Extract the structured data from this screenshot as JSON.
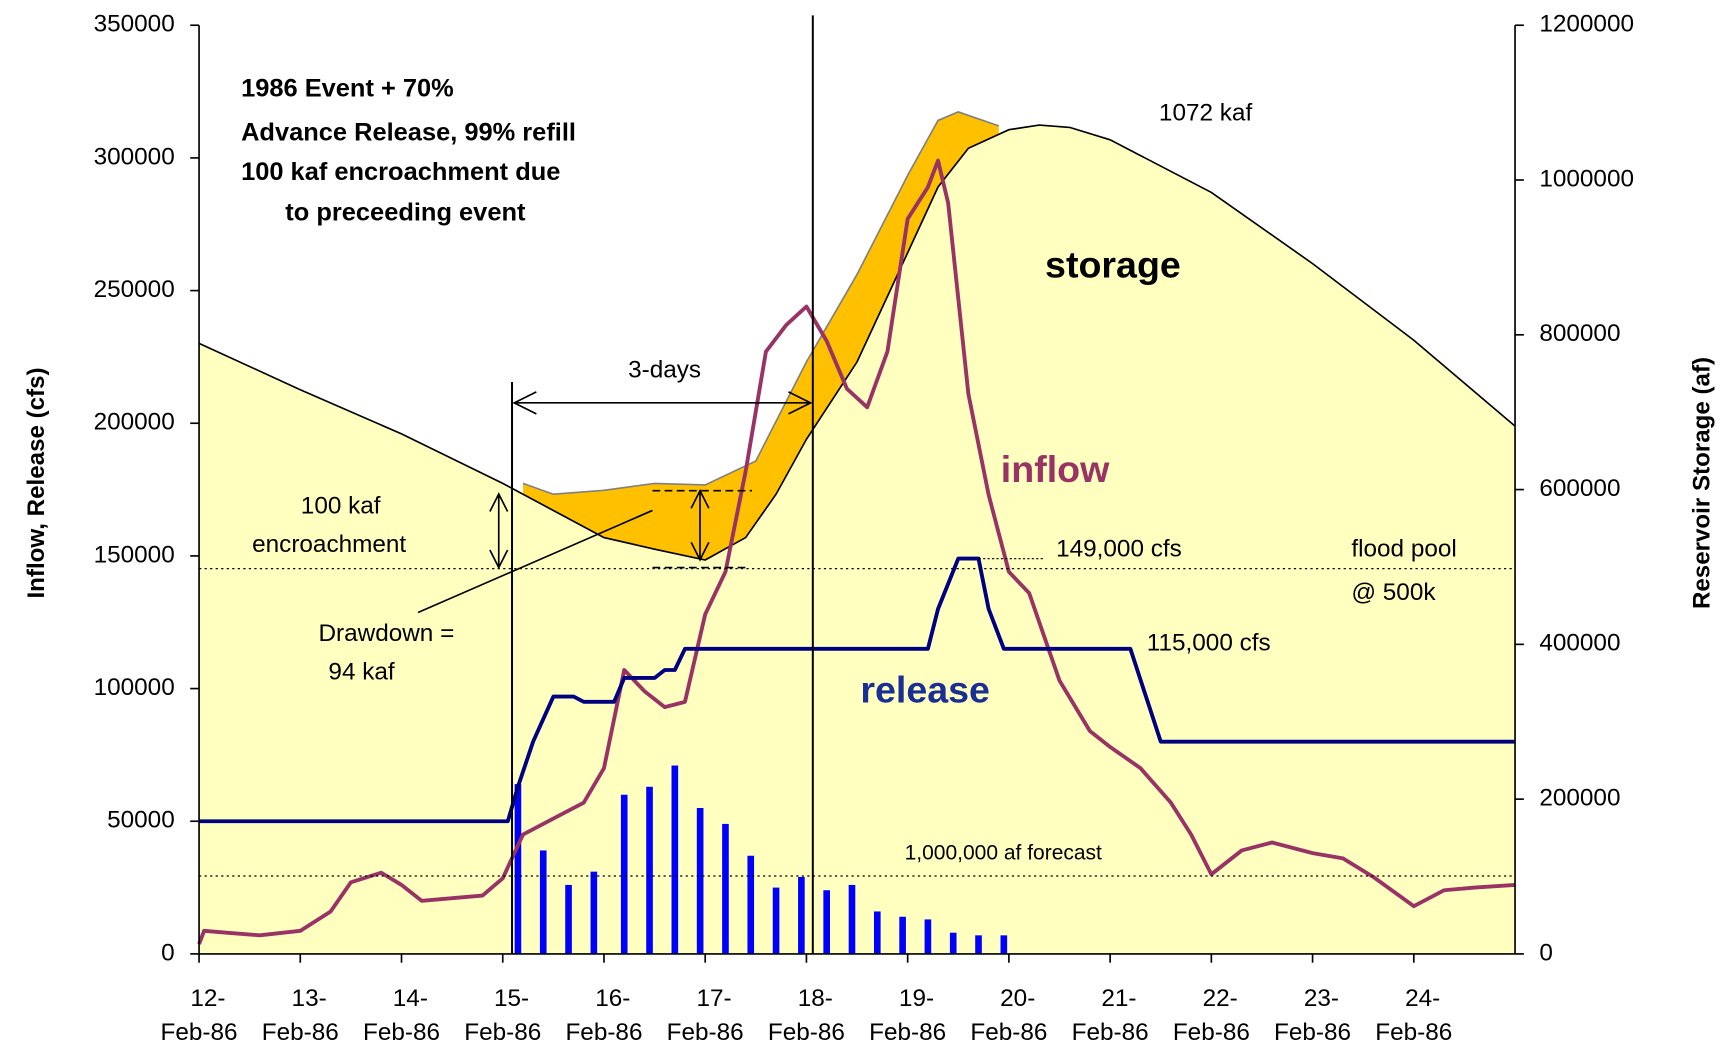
{
  "chart_data": {
    "type": "line",
    "ylabel": "Inflow, Release (cfs)",
    "y2label": "Reservoir Storage (af)",
    "xlim": [
      12,
      25
    ],
    "xticks": [
      {
        "value": 12,
        "label": "12-Feb-86"
      },
      {
        "value": 13,
        "label": "13-Feb-86"
      },
      {
        "value": 14,
        "label": "14-Feb-86"
      },
      {
        "value": 15,
        "label": "15-Feb-86"
      },
      {
        "value": 16,
        "label": "16-Feb-86"
      },
      {
        "value": 17,
        "label": "17-Feb-86"
      },
      {
        "value": 18,
        "label": "18-Feb-86"
      },
      {
        "value": 19,
        "label": "19-Feb-86"
      },
      {
        "value": 20,
        "label": "20-Feb-86"
      },
      {
        "value": 21,
        "label": "21-Feb-86"
      },
      {
        "value": 22,
        "label": "22-Feb-86"
      },
      {
        "value": 23,
        "label": "23-Feb-86"
      },
      {
        "value": 24,
        "label": "24-Feb-86"
      }
    ],
    "ylim": [
      0,
      350000
    ],
    "yticks": [
      0,
      50000,
      100000,
      150000,
      200000,
      250000,
      300000,
      350000
    ],
    "y2lim": [
      0,
      1200000
    ],
    "y2ticks": [
      0,
      200000,
      400000,
      600000,
      800000,
      1000000,
      1200000
    ],
    "series": [
      {
        "type": "area",
        "axis": "y2",
        "color": "#ffc000",
        "line_color": "#808080",
        "x": [
          15.2,
          15.5,
          16.0,
          16.5,
          17.0,
          17.5,
          18.0,
          18.5,
          19.0,
          19.3,
          19.5,
          19.9
        ],
        "values": [
          608000,
          594000,
          599000,
          608000,
          606000,
          637000,
          765000,
          878000,
          1006000,
          1077000,
          1088000,
          1070000
        ]
      },
      {
        "type": "area",
        "axis": "y2",
        "color": "#ffffc0",
        "line_color": "#000000",
        "x": [
          12.0,
          13.0,
          14.0,
          15.0,
          15.5,
          16.0,
          16.5,
          17.0,
          17.4,
          17.7,
          18.0,
          18.5,
          19.0,
          19.3,
          19.6,
          20.0,
          20.3,
          20.6,
          21.0,
          22.0,
          23.0,
          24.0,
          25.0
        ],
        "values": [
          789000,
          729000,
          672000,
          608000,
          573000,
          538000,
          523000,
          509000,
          538000,
          594000,
          665000,
          765000,
          906000,
          991000,
          1041000,
          1065000,
          1071000,
          1068000,
          1052000,
          984000,
          892000,
          793000,
          682000
        ]
      },
      {
        "type": "line",
        "color": "#993366",
        "x": [
          12.0,
          12.05,
          12.3,
          12.6,
          13.0,
          13.3,
          13.5,
          13.8,
          14.0,
          14.2,
          14.5,
          14.8,
          15.0,
          15.2,
          15.5,
          15.8,
          16.0,
          16.2,
          16.4,
          16.6,
          16.8,
          17.0,
          17.2,
          17.4,
          17.6,
          17.8,
          18.0,
          18.2,
          18.4,
          18.6,
          18.8,
          19.0,
          19.2,
          19.3,
          19.4,
          19.6,
          19.8,
          20.0,
          20.2,
          20.5,
          20.8,
          21.0,
          21.3,
          21.6,
          21.8,
          22.0,
          22.3,
          22.6,
          23.0,
          23.3,
          23.6,
          24.0,
          24.3,
          24.6,
          25.0
        ],
        "values": [
          3700,
          8700,
          7900,
          7000,
          8700,
          16000,
          27000,
          30600,
          26000,
          20000,
          21000,
          22000,
          28500,
          45000,
          51000,
          57000,
          70000,
          107000,
          99000,
          93000,
          95000,
          128000,
          144000,
          182000,
          227000,
          237000,
          244000,
          231000,
          213000,
          206000,
          227000,
          277000,
          289000,
          299000,
          283000,
          211000,
          173000,
          144000,
          136000,
          103000,
          84000,
          78000,
          70000,
          57000,
          45000,
          30000,
          39000,
          42000,
          38000,
          36000,
          29000,
          18000,
          24000,
          25000,
          26000
        ]
      },
      {
        "type": "line",
        "color": "#000080",
        "x": [
          12.0,
          15.05,
          15.15,
          15.3,
          15.5,
          15.7,
          15.8,
          16.1,
          16.2,
          16.5,
          16.6,
          16.7,
          16.8,
          19.2,
          19.3,
          19.5,
          19.7,
          19.8,
          19.95,
          21.2,
          21.5,
          25.0
        ],
        "values": [
          50000,
          50000,
          63000,
          80000,
          97000,
          97000,
          95000,
          95000,
          104000,
          104000,
          107000,
          107000,
          115000,
          115000,
          130000,
          149000,
          149000,
          130000,
          115000,
          115000,
          80000,
          80000
        ]
      },
      {
        "type": "bar",
        "color": "#0000ff",
        "x": [
          15.15,
          15.4,
          15.65,
          15.9,
          16.2,
          16.45,
          16.7,
          16.95,
          17.2,
          17.45,
          17.7,
          17.95,
          18.2,
          18.45,
          18.7,
          18.95,
          19.2,
          19.45,
          19.7,
          19.95
        ],
        "values": [
          64000,
          39000,
          26000,
          31000,
          60000,
          63000,
          71000,
          55000,
          49000,
          37000,
          25000,
          29000,
          24000,
          26000,
          16000,
          14000,
          13000,
          8000,
          7000,
          7000
        ]
      }
    ],
    "annotations": [
      "1986 Event + 70%",
      "Advance Release, 99% refill",
      "100 kaf encroachment due",
      "to preceeding event",
      "1072  kaf",
      "storage",
      "3-days",
      "100 kaf",
      "encroachment",
      "inflow",
      "149,000 cfs",
      "flood pool",
      "@ 500k",
      "Drawdown =",
      "94 kaf",
      "115,000 cfs",
      "release",
      "1,000,000 af forecast"
    ]
  }
}
